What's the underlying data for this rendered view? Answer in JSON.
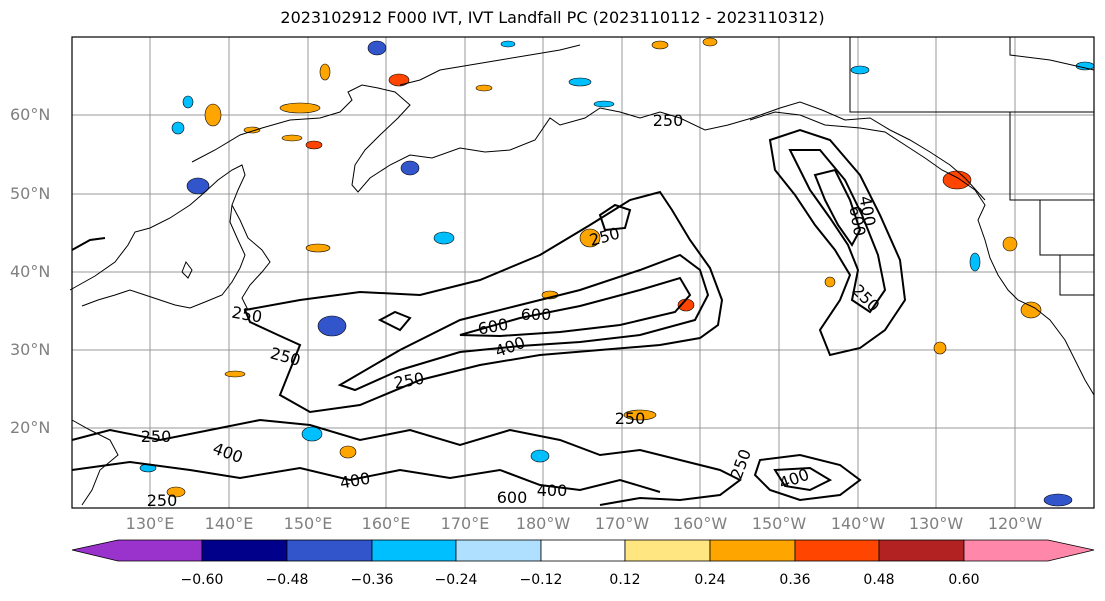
{
  "title": "2023102912 F000 IVT, IVT Landfall PC (2023110112 - 2023110312)",
  "lat_labels": [
    "60°N",
    "50°N",
    "40°N",
    "30°N",
    "20°N"
  ],
  "lon_labels": [
    "130°E",
    "140°E",
    "150°E",
    "160°E",
    "170°E",
    "180°W",
    "170°W",
    "160°W",
    "150°W",
    "140°W",
    "130°W",
    "120°W"
  ],
  "contour_labels": [
    "250",
    "250",
    "250",
    "250",
    "250",
    "250",
    "250",
    "400",
    "400",
    "400",
    "400",
    "400",
    "600",
    "600",
    "600",
    "600",
    "250",
    "250",
    "250",
    "400"
  ],
  "colorbar": {
    "tick_labels": [
      "−0.60",
      "−0.48",
      "−0.36",
      "−0.24",
      "−0.12",
      "0.12",
      "0.24",
      "0.36",
      "0.48",
      "0.60"
    ],
    "colors": [
      "#9933cc",
      "#00008b",
      "#3355cc",
      "#00bfff",
      "#b0e0ff",
      "#ffffff",
      "#ffe680",
      "#ffa500",
      "#ff4500",
      "#b22222",
      "#ff88aa"
    ]
  }
}
